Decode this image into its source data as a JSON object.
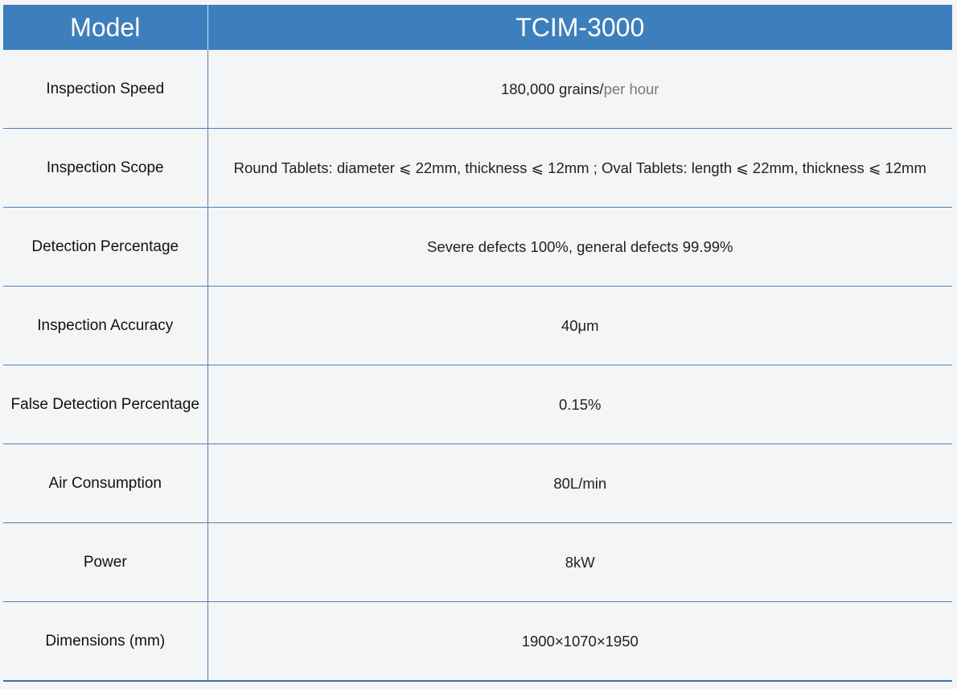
{
  "header": {
    "label": "Model",
    "value": "TCIM-3000"
  },
  "rows": [
    {
      "label": "Inspection Speed",
      "value": "180,000 grains/",
      "value_suffix": "per hour"
    },
    {
      "label": "Inspection Scope",
      "value": "Round Tablets: diameter ⩽ 22mm, thickness ⩽ 12mm ; Oval Tablets: length ⩽ 22mm, thickness ⩽ 12mm"
    },
    {
      "label": "Detection Percentage",
      "value": "Severe defects 100%, general defects 99.99%"
    },
    {
      "label": "Inspection Accuracy",
      "value": "40μm"
    },
    {
      "label": "False Detection Percentage",
      "value": "0.15%"
    },
    {
      "label": "Air Consumption",
      "value": "80L/min"
    },
    {
      "label": "Power",
      "value": "8kW"
    },
    {
      "label": "Dimensions (mm)",
      "value": "1900×1070×1950"
    }
  ],
  "colors": {
    "header_bg": "#3d7fbc",
    "row_divider": "#4f7fb6",
    "page_bg": "#f4f5f7"
  }
}
